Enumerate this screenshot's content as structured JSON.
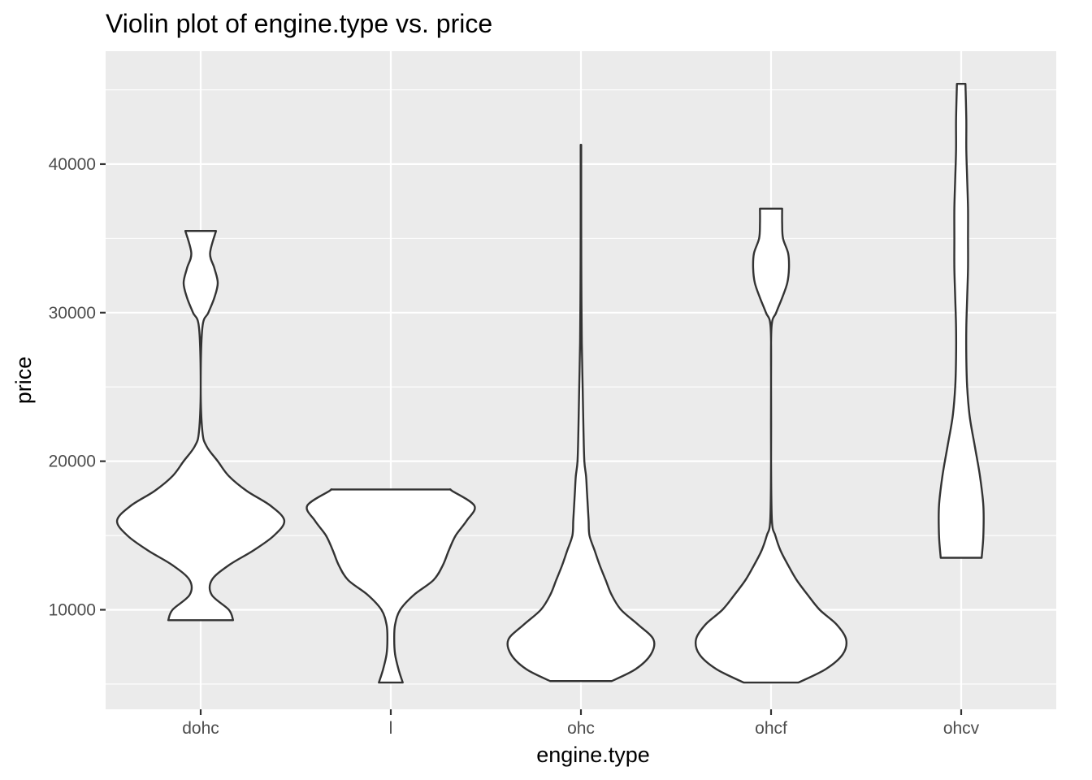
{
  "chart_data": {
    "type": "violin",
    "title": "Violin plot of engine.type vs. price",
    "xlabel": "engine.type",
    "ylabel": "price",
    "categories": [
      "dohc",
      "l",
      "ohc",
      "ohcf",
      "ohcv"
    ],
    "ylim": [
      3300,
      47600
    ],
    "yticks": [
      10000,
      20000,
      30000,
      40000
    ],
    "ytick_labels": [
      "10000",
      "20000",
      "30000",
      "40000"
    ],
    "grid": true,
    "panel_background": "#ebebeb",
    "violin_fill": "#ffffff",
    "violin_stroke": "#333333",
    "series": [
      {
        "category": "dohc",
        "min": 9300,
        "max": 35500,
        "profile": [
          [
            9300,
            0.38
          ],
          [
            10000,
            0.33
          ],
          [
            11000,
            0.13
          ],
          [
            12000,
            0.13
          ],
          [
            13000,
            0.33
          ],
          [
            14000,
            0.62
          ],
          [
            15000,
            0.86
          ],
          [
            16000,
            0.98
          ],
          [
            17000,
            0.82
          ],
          [
            18000,
            0.54
          ],
          [
            19000,
            0.33
          ],
          [
            20000,
            0.2
          ],
          [
            21000,
            0.07
          ],
          [
            22000,
            0.02
          ],
          [
            25000,
            0.0
          ],
          [
            29000,
            0.02
          ],
          [
            30000,
            0.09
          ],
          [
            31000,
            0.16
          ],
          [
            32000,
            0.2
          ],
          [
            33000,
            0.16
          ],
          [
            34000,
            0.11
          ],
          [
            35500,
            0.18
          ]
        ]
      },
      {
        "category": "l",
        "min": 5100,
        "max": 18100,
        "profile": [
          [
            5100,
            0.14
          ],
          [
            6000,
            0.09
          ],
          [
            7000,
            0.05
          ],
          [
            8000,
            0.04
          ],
          [
            9000,
            0.05
          ],
          [
            10000,
            0.11
          ],
          [
            11000,
            0.27
          ],
          [
            12000,
            0.5
          ],
          [
            13000,
            0.61
          ],
          [
            14000,
            0.68
          ],
          [
            15000,
            0.76
          ],
          [
            16000,
            0.89
          ],
          [
            17000,
            0.98
          ],
          [
            18000,
            0.72
          ],
          [
            18100,
            0.7
          ]
        ]
      },
      {
        "category": "ohc",
        "min": 5200,
        "max": 41300,
        "profile": [
          [
            5200,
            0.36
          ],
          [
            6000,
            0.64
          ],
          [
            7000,
            0.82
          ],
          [
            8000,
            0.85
          ],
          [
            9000,
            0.67
          ],
          [
            10000,
            0.47
          ],
          [
            11000,
            0.36
          ],
          [
            12000,
            0.29
          ],
          [
            13000,
            0.22
          ],
          [
            14000,
            0.16
          ],
          [
            15000,
            0.1
          ],
          [
            16000,
            0.09
          ],
          [
            17000,
            0.08
          ],
          [
            18000,
            0.07
          ],
          [
            19000,
            0.06
          ],
          [
            20000,
            0.04
          ],
          [
            22000,
            0.03
          ],
          [
            25000,
            0.02
          ],
          [
            28000,
            0.01
          ],
          [
            32000,
            0.005
          ],
          [
            36000,
            0.003
          ],
          [
            41300,
            0.003
          ]
        ]
      },
      {
        "category": "ohcf",
        "min": 5100,
        "max": 37000,
        "profile": [
          [
            5100,
            0.32
          ],
          [
            6000,
            0.64
          ],
          [
            7000,
            0.84
          ],
          [
            8000,
            0.88
          ],
          [
            9000,
            0.77
          ],
          [
            10000,
            0.57
          ],
          [
            11000,
            0.43
          ],
          [
            12000,
            0.3
          ],
          [
            13000,
            0.2
          ],
          [
            14000,
            0.11
          ],
          [
            15000,
            0.05
          ],
          [
            16000,
            0.01
          ],
          [
            20000,
            0.0
          ],
          [
            25000,
            0.0
          ],
          [
            29000,
            0.005
          ],
          [
            30000,
            0.06
          ],
          [
            31000,
            0.13
          ],
          [
            32000,
            0.19
          ],
          [
            33000,
            0.21
          ],
          [
            34000,
            0.2
          ],
          [
            35000,
            0.14
          ],
          [
            36000,
            0.13
          ],
          [
            37000,
            0.13
          ]
        ]
      },
      {
        "category": "ohcv",
        "min": 13500,
        "max": 45400,
        "profile": [
          [
            13500,
            0.24
          ],
          [
            15000,
            0.26
          ],
          [
            17000,
            0.26
          ],
          [
            19000,
            0.22
          ],
          [
            21000,
            0.16
          ],
          [
            23000,
            0.1
          ],
          [
            25000,
            0.07
          ],
          [
            27000,
            0.06
          ],
          [
            29000,
            0.06
          ],
          [
            31000,
            0.07
          ],
          [
            33000,
            0.08
          ],
          [
            35000,
            0.08
          ],
          [
            37000,
            0.08
          ],
          [
            39000,
            0.07
          ],
          [
            41000,
            0.06
          ],
          [
            43000,
            0.06
          ],
          [
            45400,
            0.05
          ]
        ]
      }
    ]
  }
}
